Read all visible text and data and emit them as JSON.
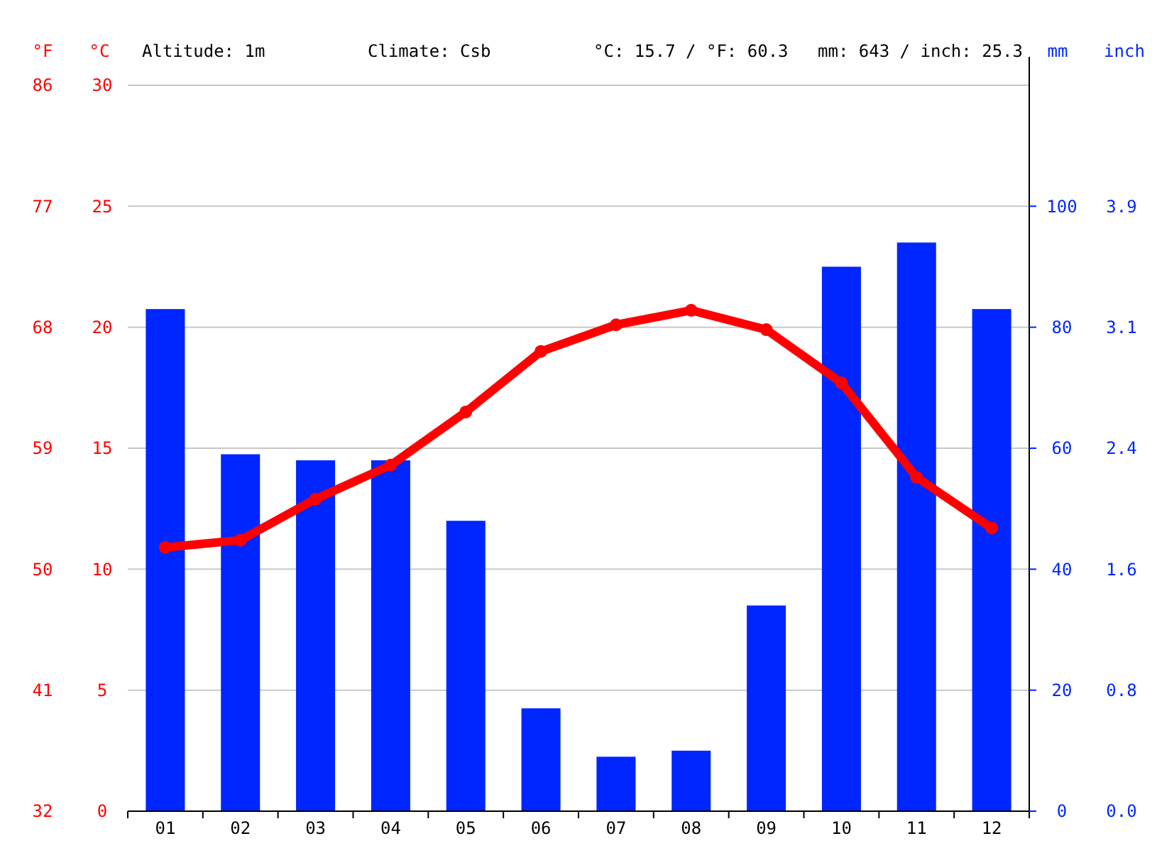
{
  "chart_data": {
    "type": "bar",
    "categories": [
      "01",
      "02",
      "03",
      "04",
      "05",
      "06",
      "07",
      "08",
      "09",
      "10",
      "11",
      "12"
    ],
    "series": [
      {
        "axis": "y2",
        "color": "#0026ff",
        "values": [
          83,
          59,
          58,
          58,
          48,
          17,
          9,
          10,
          34,
          90,
          94,
          83
        ]
      },
      {
        "type": "line",
        "color": "#ff0000",
        "values": [
          10.9,
          11.2,
          12.9,
          14.3,
          16.5,
          19.0,
          20.1,
          20.7,
          19.9,
          17.7,
          13.8,
          11.7
        ]
      }
    ],
    "ylabel": "°C",
    "y2label": "mm",
    "y3label": "°F",
    "ylim": [
      0,
      30
    ],
    "yticks": [
      0,
      5,
      10,
      15,
      20,
      25,
      30
    ],
    "y2lim": [
      0,
      120
    ],
    "y2ticks": [
      0,
      20,
      40,
      60,
      80,
      100
    ],
    "y3lim": [
      32,
      86
    ],
    "y3ticks": [
      32,
      41,
      50,
      59,
      68,
      77,
      86
    ],
    "annotations": [
      "Altitude: 1m",
      "Climate: Csb",
      "°C: 15.7 / °F: 60.3",
      "mm: 643 / inch: 25.3",
      "inch",
      "0.0",
      "0.8",
      "1.6",
      "2.4",
      "3.1",
      "3.9"
    ],
    "grid": "y",
    "marker": "circle",
    "line_style": "solid",
    "legend": false
  }
}
